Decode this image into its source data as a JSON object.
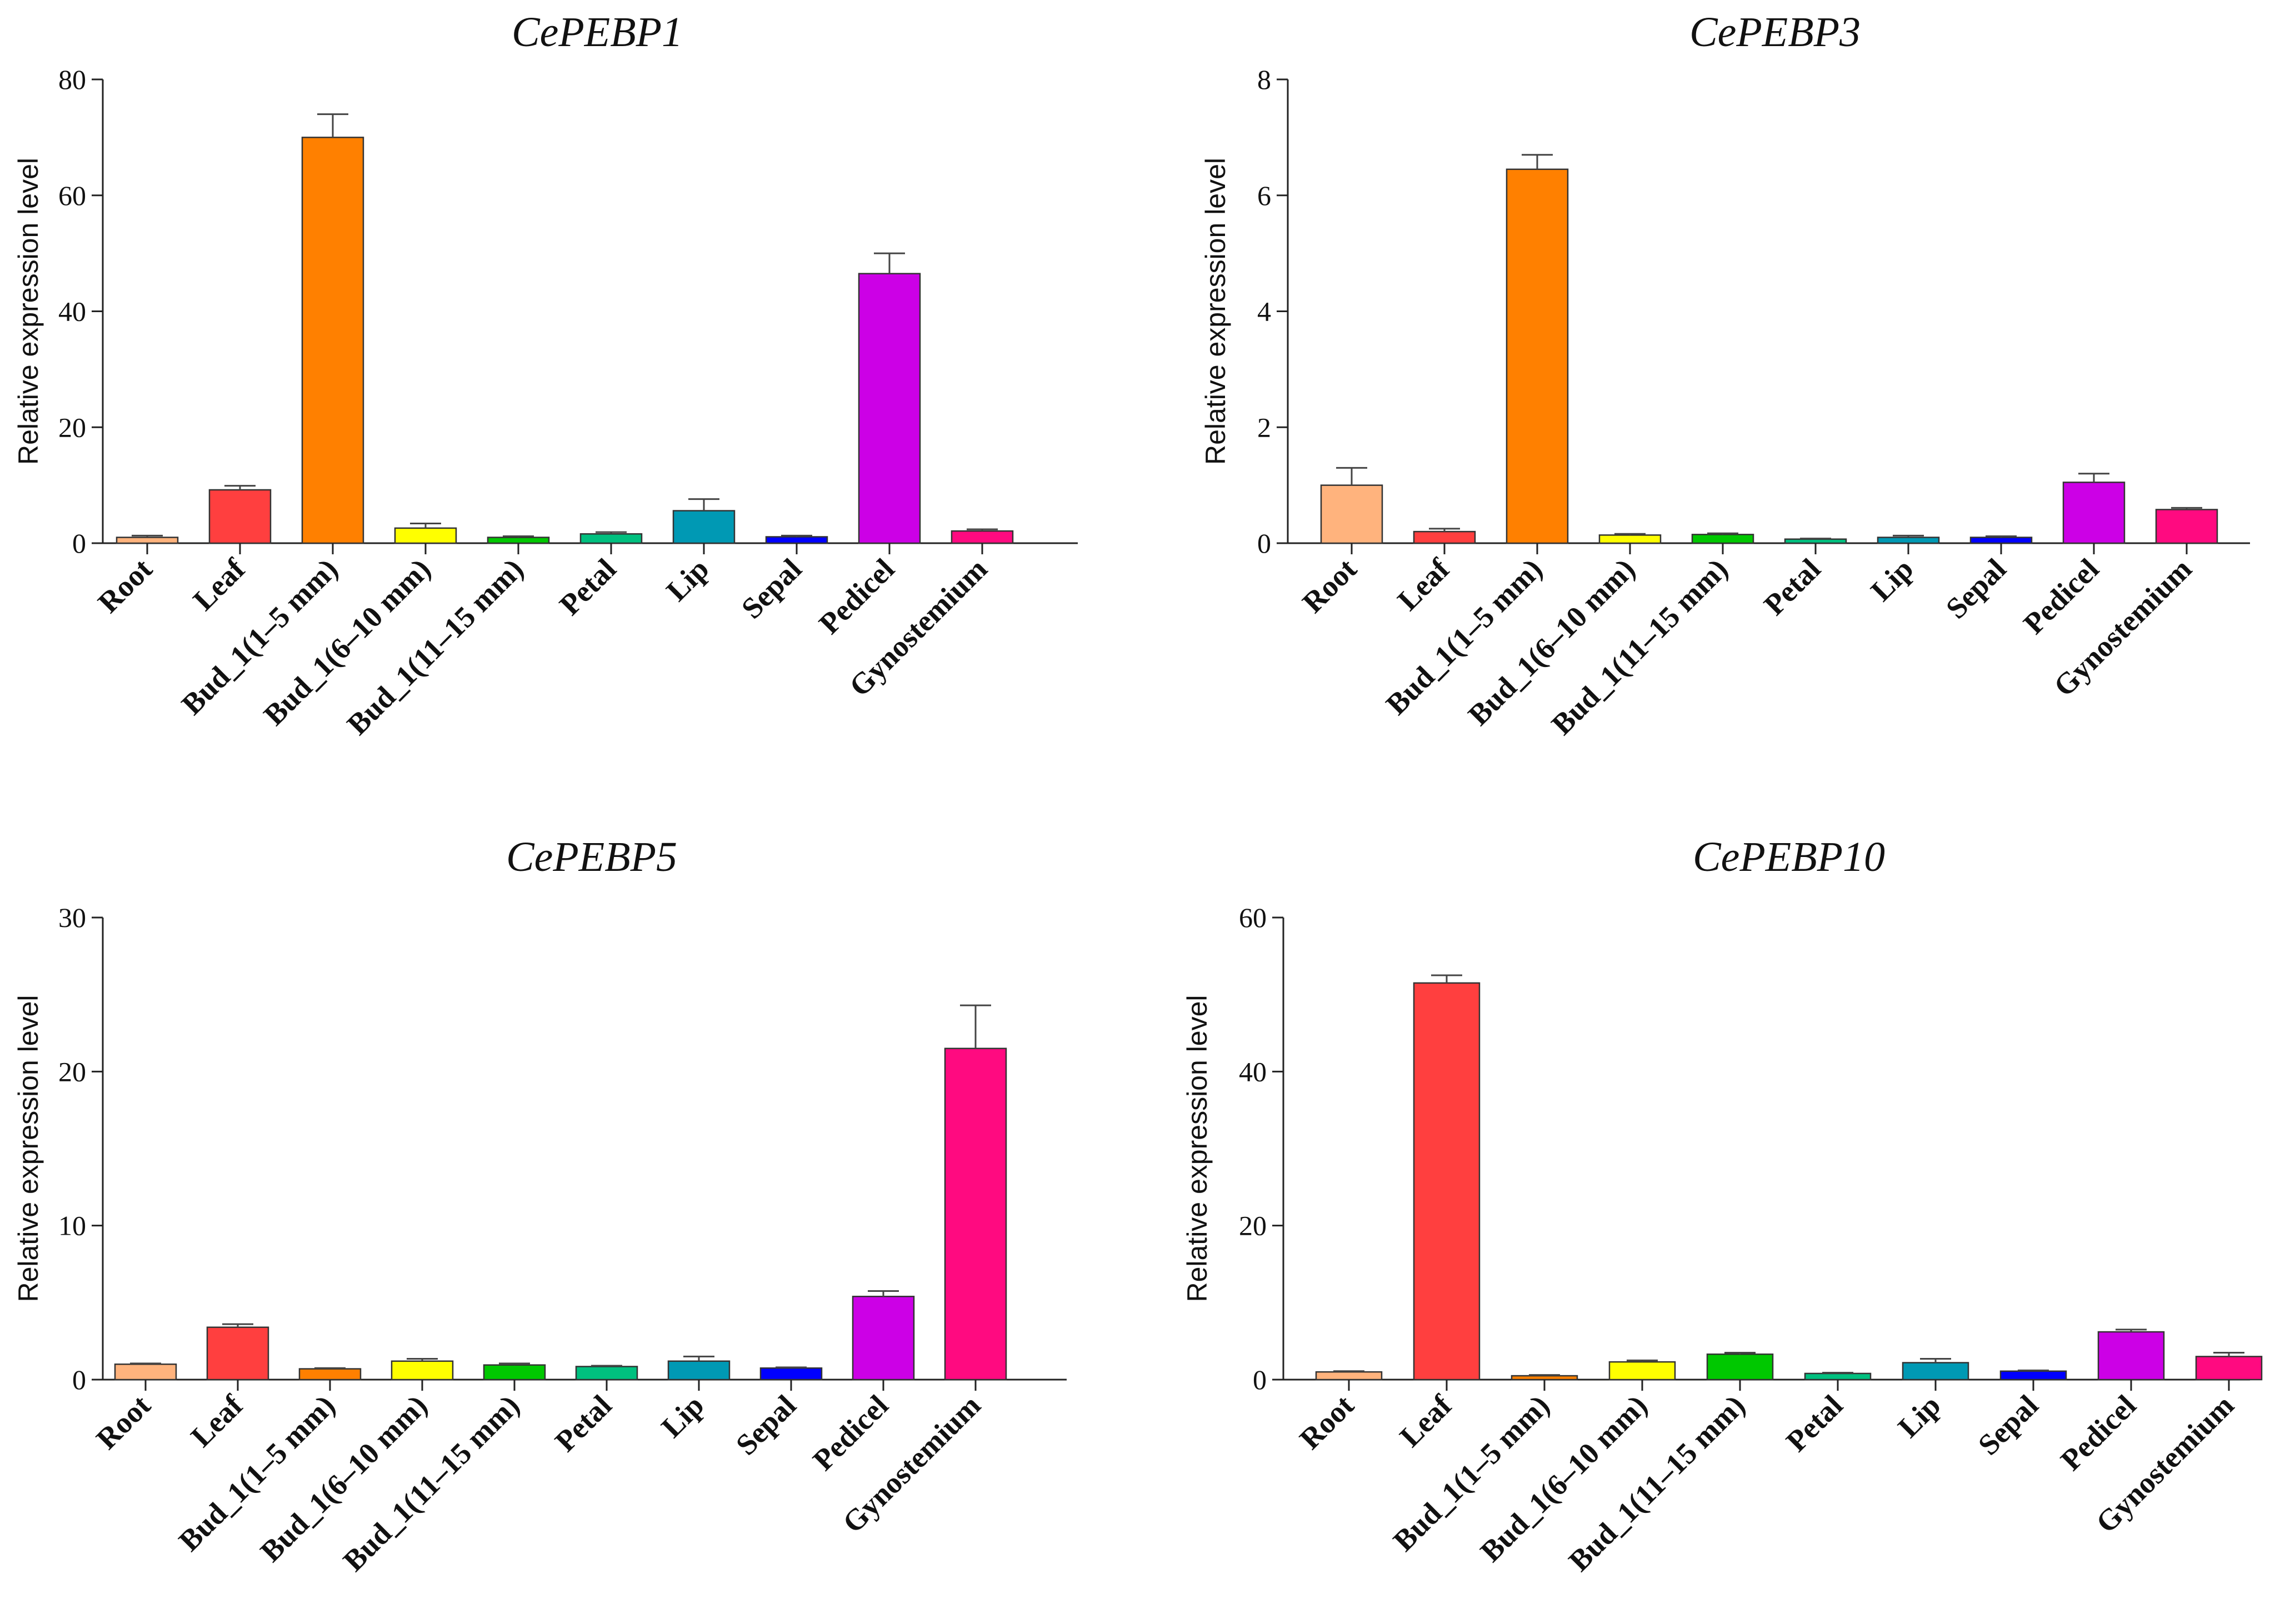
{
  "chart_data": [
    {
      "type": "bar",
      "title": "CePEBP1",
      "ylabel": "Relative expression level",
      "ylim": [
        0,
        80
      ],
      "yticks": [
        0,
        20,
        40,
        60,
        80
      ],
      "categories": [
        "Root",
        "Leaf",
        "Bud_1(1–5 mm)",
        "Bud_1(6–10 mm)",
        "Bud_1(11–15 mm)",
        "Petal",
        "Lip",
        "Sepal",
        "Pedicel",
        "Gynostemium"
      ],
      "values": [
        1.0,
        9.2,
        70.0,
        2.6,
        1.0,
        1.6,
        5.6,
        1.1,
        46.5,
        2.1
      ],
      "errors": [
        0.3,
        0.7,
        4.0,
        0.8,
        0.2,
        0.3,
        2.0,
        0.2,
        3.5,
        0.3
      ]
    },
    {
      "type": "bar",
      "title": "CePEBP3",
      "ylabel": "Relative expression level",
      "ylim": [
        0,
        8
      ],
      "yticks": [
        0,
        2,
        4,
        6,
        8
      ],
      "categories": [
        "Root",
        "Leaf",
        "Bud_1(1–5 mm)",
        "Bud_1(6–10 mm)",
        "Bud_1(11–15 mm)",
        "Petal",
        "Lip",
        "Sepal",
        "Pedicel",
        "Gynostemium"
      ],
      "values": [
        1.0,
        0.2,
        6.45,
        0.14,
        0.15,
        0.07,
        0.1,
        0.1,
        1.05,
        0.58
      ],
      "errors": [
        0.3,
        0.05,
        0.25,
        0.02,
        0.02,
        0.01,
        0.03,
        0.02,
        0.15,
        0.03
      ]
    },
    {
      "type": "bar",
      "title": "CePEBP5",
      "ylabel": "Relative expression level",
      "ylim": [
        0,
        30
      ],
      "yticks": [
        0,
        10,
        20,
        30
      ],
      "categories": [
        "Root",
        "Leaf",
        "Bud_1(1–5 mm)",
        "Bud_1(6–10 mm)",
        "Bud_1(11–15 mm)",
        "Petal",
        "Lip",
        "Sepal",
        "Pedicel",
        "Gynostemium"
      ],
      "values": [
        1.0,
        3.4,
        0.7,
        1.2,
        0.95,
        0.85,
        1.2,
        0.75,
        5.4,
        21.5
      ],
      "errors": [
        0.05,
        0.2,
        0.05,
        0.15,
        0.1,
        0.05,
        0.3,
        0.05,
        0.35,
        2.8
      ]
    },
    {
      "type": "bar",
      "title": "CePEBP10",
      "ylabel": "Relative expression level",
      "ylim": [
        0,
        60
      ],
      "yticks": [
        0,
        20,
        40,
        60
      ],
      "categories": [
        "Root",
        "Leaf",
        "Bud_1(1–5 mm)",
        "Bud_1(6–10 mm)",
        "Bud_1(11–15 mm)",
        "Petal",
        "Lip",
        "Sepal",
        "Pedicel",
        "Gynostemium"
      ],
      "values": [
        1.0,
        51.5,
        0.5,
        2.3,
        3.3,
        0.8,
        2.2,
        1.1,
        6.2,
        3.0
      ],
      "errors": [
        0.1,
        1.0,
        0.1,
        0.2,
        0.2,
        0.1,
        0.5,
        0.1,
        0.3,
        0.5
      ]
    }
  ],
  "bar_colors": [
    "#FFB37D",
    "#FF3F3F",
    "#FF8000",
    "#FFFF00",
    "#00C800",
    "#00C07F",
    "#0099B4",
    "#0000FF",
    "#CC00E6",
    "#FF0A80"
  ]
}
